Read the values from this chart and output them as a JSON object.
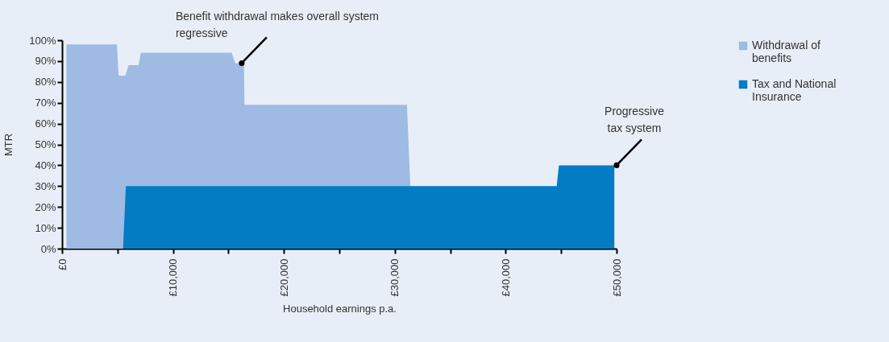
{
  "chart_data": {
    "type": "area",
    "xlabel": "Household earnings p.a.",
    "ylabel": "MTR",
    "xlim": [
      0,
      50000
    ],
    "xticks": [
      {
        "value": 0,
        "label": "£0"
      },
      {
        "value": 5000,
        "label": null
      },
      {
        "value": 10000,
        "label": "£10,000"
      },
      {
        "value": 15000,
        "label": null
      },
      {
        "value": 20000,
        "label": "£20,000"
      },
      {
        "value": 25000,
        "label": null
      },
      {
        "value": 30000,
        "label": "£30,000"
      },
      {
        "value": 35000,
        "label": null
      },
      {
        "value": 40000,
        "label": "£40,000"
      },
      {
        "value": 45000,
        "label": null
      },
      {
        "value": 50000,
        "label": "£50,000"
      }
    ],
    "ylim": [
      0,
      100
    ],
    "yticks": [
      {
        "value": 0,
        "label": "0%"
      },
      {
        "value": 10,
        "label": "10%"
      },
      {
        "value": 20,
        "label": "20%"
      },
      {
        "value": 30,
        "label": "30%"
      },
      {
        "value": 40,
        "label": "40%"
      },
      {
        "value": 50,
        "label": "50%"
      },
      {
        "value": 60,
        "label": "60%"
      },
      {
        "value": 70,
        "label": "70%"
      },
      {
        "value": 80,
        "label": "80%"
      },
      {
        "value": 90,
        "label": "90%"
      },
      {
        "value": 100,
        "label": "100%"
      }
    ],
    "series": [
      {
        "name": "Withdrawal of benefits",
        "color": "#9fbbe3",
        "x": [
          400,
          4950,
          5100,
          5700,
          6000,
          6900,
          7100,
          15300,
          15600,
          16400,
          16450,
          31100,
          31400
        ],
        "values": [
          98,
          98,
          83,
          83,
          88,
          88,
          94,
          94,
          89,
          89,
          69,
          69,
          30
        ]
      },
      {
        "name": "Tax and National Insurance",
        "color": "#037cc4",
        "x": [
          5500,
          5750,
          44600,
          44800,
          49800
        ],
        "values": [
          0,
          30,
          30,
          40,
          40
        ]
      }
    ],
    "annotations": [
      {
        "text": "Benefit withdrawal makes overall system regressive",
        "x": 16200,
        "y": 89
      },
      {
        "text": "Progressive tax system",
        "x": 50000,
        "y": 40
      }
    ],
    "legend": "right",
    "grid": false
  }
}
